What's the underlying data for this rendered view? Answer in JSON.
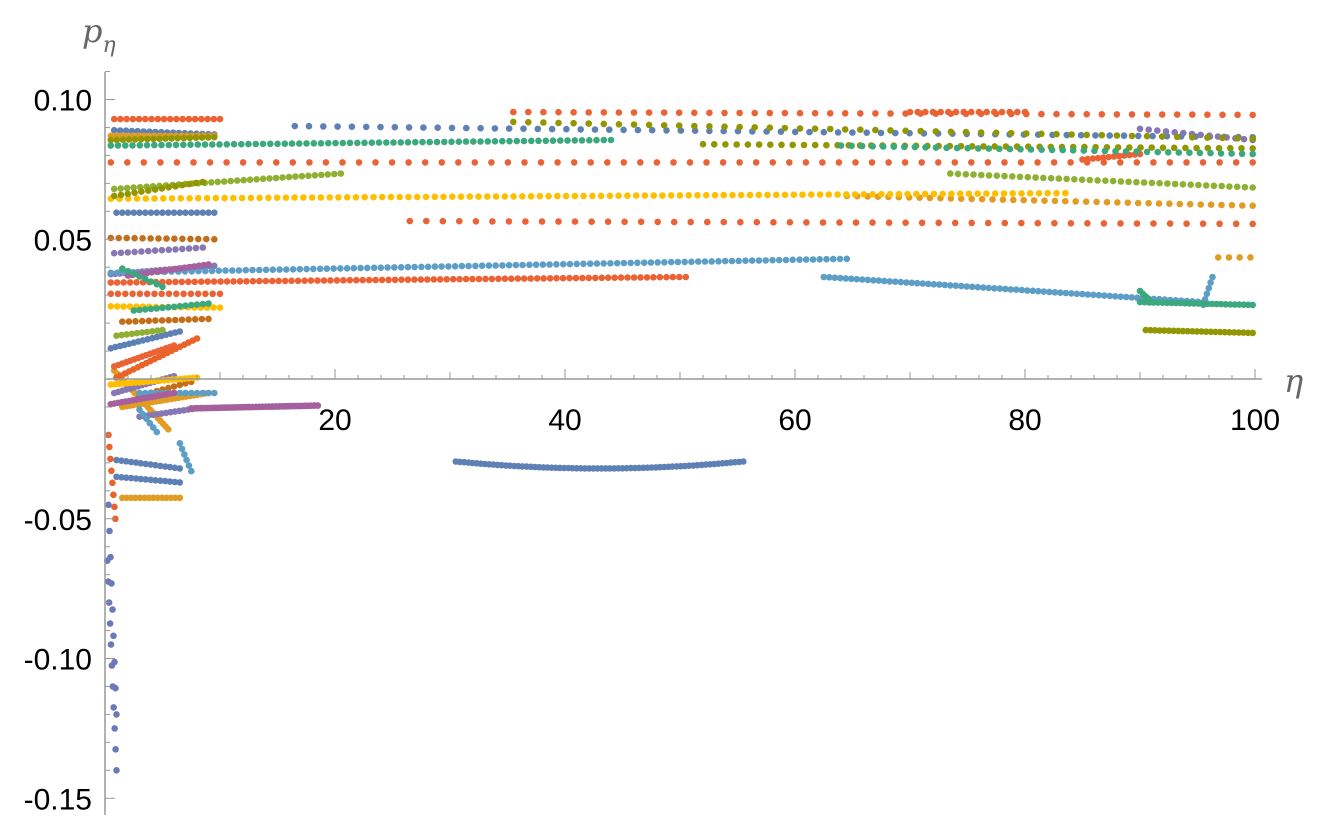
{
  "chart_data": {
    "type": "scatter",
    "title": "",
    "xlabel": "η",
    "ylabel": "p",
    "ylabel_subscript": "η",
    "xlim": [
      0,
      100
    ],
    "ylim": [
      -0.15,
      0.11
    ],
    "xticks": [
      20,
      40,
      60,
      80,
      100
    ],
    "xtick_labels": [
      "20",
      "40",
      "60",
      "80",
      "100"
    ],
    "yticks": [
      0.1,
      0.05,
      -0.05,
      -0.1,
      -0.15
    ],
    "ytick_labels": [
      "0.10",
      "0.05",
      "-0.05",
      "-0.10",
      "-0.15"
    ],
    "grid": false,
    "legend": "none",
    "series": [
      {
        "color": "#5e81b5",
        "segments": [
          {
            "x": [
              0.8,
              9.5
            ],
            "y": [
              0.089,
              0.0875
            ],
            "n": 18
          },
          {
            "x": [
              16.5,
              99.8
            ],
            "y": [
              0.0905,
              0.0865
            ],
            "n": 68
          },
          {
            "x": [
              30.5,
              55.5
            ],
            "y": [
              -0.0295,
              -0.0295
            ],
            "curve": -0.0025,
            "n": 70
          },
          {
            "x": [
              1.0,
              9.5
            ],
            "y": [
              0.0595,
              0.0595
            ],
            "n": 18
          },
          {
            "x": [
              0.5,
              6.5
            ],
            "y": [
              0.011,
              0.017
            ],
            "n": 16
          },
          {
            "x": [
              1.0,
              6.5
            ],
            "y": [
              -0.029,
              -0.032
            ],
            "n": 14
          },
          {
            "x": [
              1.0,
              6.5
            ],
            "y": [
              -0.035,
              -0.037
            ],
            "n": 14
          }
        ]
      },
      {
        "color": "#e19c24",
        "segments": [
          {
            "x": [
              0.5,
              9.5
            ],
            "y": [
              0.087,
              0.087
            ],
            "n": 20
          },
          {
            "x": [
              64.5,
              99.8
            ],
            "y": [
              0.0655,
              0.062
            ],
            "n": 40
          },
          {
            "x": [
              96.8,
              99.6
            ],
            "y": [
              0.0435,
              0.0435
            ],
            "n": 4
          },
          {
            "x": [
              1.5,
              6.5
            ],
            "y": [
              -0.0425,
              -0.0425
            ],
            "n": 14
          },
          {
            "x": [
              1.5,
              9.0
            ],
            "y": [
              -0.01,
              -0.005
            ],
            "n": 24
          },
          {
            "x": [
              0.8,
              5.5
            ],
            "y": [
              0.003,
              -0.018
            ],
            "n": 22
          }
        ]
      },
      {
        "color": "#8fb032",
        "segments": [
          {
            "x": [
              0.8,
              20.5
            ],
            "y": [
              0.068,
              0.0735
            ],
            "n": 36
          },
          {
            "x": [
              73.5,
              99.8
            ],
            "y": [
              0.0735,
              0.0685
            ],
            "n": 40
          },
          {
            "x": [
              1.0,
              5.0
            ],
            "y": [
              0.0155,
              0.0175
            ],
            "n": 10
          }
        ]
      },
      {
        "color": "#eb6235",
        "segments": [
          {
            "x": [
              0.8,
              10.0
            ],
            "y": [
              0.093,
              0.093
            ],
            "n": 18
          },
          {
            "x": [
              35.5,
              99.8
            ],
            "y": [
              0.0955,
              0.0945
            ],
            "n": 50
          },
          {
            "x": [
              70.0,
              80.0
            ],
            "y": [
              0.0955,
              0.0955
            ],
            "n": 16
          },
          {
            "x": [
              0.5,
              99.8
            ],
            "y": [
              0.0775,
              0.0775
            ],
            "n": 70
          },
          {
            "x": [
              26.5,
              99.8
            ],
            "y": [
              0.0565,
              0.0555
            ],
            "n": 52
          },
          {
            "x": [
              0.5,
              50.5
            ],
            "y": [
              0.0345,
              0.0365
            ],
            "n": 90
          },
          {
            "x": [
              85.0,
              90.0
            ],
            "y": [
              0.0785,
              0.0805
            ],
            "n": 12
          },
          {
            "x": [
              0.5,
              10.0
            ],
            "y": [
              0.0305,
              0.0305
            ],
            "n": 16
          },
          {
            "x": [
              0.8,
              6.0
            ],
            "y": [
              0.0045,
              0.012
            ],
            "n": 16
          }
        ]
      },
      {
        "color": "#8778b3",
        "segments": [
          {
            "x": [
              0.5,
              9.5
            ],
            "y": [
              0.0375,
              0.0405
            ],
            "n": 24
          },
          {
            "x": [
              8.0,
              18.5
            ],
            "y": [
              -0.0105,
              -0.0095
            ],
            "n": 36
          },
          {
            "x": [
              3.0,
              8.0
            ],
            "y": [
              -0.0135,
              -0.0105
            ],
            "n": 14
          },
          {
            "x": [
              90.0,
              99.8
            ],
            "y": [
              0.0895,
              0.0855
            ],
            "n": 14
          },
          {
            "x": [
              0.8,
              8.5
            ],
            "y": [
              0.045,
              0.047
            ],
            "n": 14
          },
          {
            "x": [
              0.8,
              6.0
            ],
            "y": [
              -0.005,
              0.001
            ],
            "n": 16
          }
        ]
      },
      {
        "color": "#c56e1a",
        "segments": [
          {
            "x": [
              0.5,
              9.5
            ],
            "y": [
              0.0505,
              0.05
            ],
            "n": 14
          },
          {
            "x": [
              1.5,
              9.0
            ],
            "y": [
              0.0205,
              0.0215
            ],
            "n": 14
          },
          {
            "x": [
              3.0,
              7.5
            ],
            "y": [
              -0.006,
              -0.001
            ],
            "n": 10
          }
        ]
      },
      {
        "color": "#5d9ec7",
        "segments": [
          {
            "x": [
              0.5,
              64.5
            ],
            "y": [
              0.038,
              0.043
            ],
            "n": 110
          },
          {
            "x": [
              62.5,
              95.5
            ],
            "y": [
              0.0365,
              0.0275
            ],
            "n": 70
          },
          {
            "x": [
              95.5,
              96.3
            ],
            "y": [
              0.0265,
              0.0365
            ],
            "n": 6
          },
          {
            "x": [
              3.0,
              9.5
            ],
            "y": [
              -0.005,
              -0.005
            ],
            "n": 14
          },
          {
            "x": [
              3.0,
              4.5
            ],
            "y": [
              -0.011,
              -0.019
            ],
            "n": 6
          },
          {
            "x": [
              6.5,
              7.5
            ],
            "y": [
              -0.023,
              -0.033
            ],
            "n": 6
          }
        ]
      },
      {
        "color": "#ffbf00",
        "segments": [
          {
            "x": [
              0.5,
              83.5
            ],
            "y": [
              0.0645,
              0.0665
            ],
            "n": 110
          },
          {
            "x": [
              0.5,
              10.0
            ],
            "y": [
              0.026,
              0.0255
            ],
            "n": 18
          },
          {
            "x": [
              0.5,
              8.0
            ],
            "y": [
              -0.002,
              0.0005
            ],
            "n": 22
          }
        ]
      },
      {
        "color": "#a5609d",
        "segments": [
          {
            "x": [
              7.5,
              18.5
            ],
            "y": [
              -0.0105,
              -0.0095
            ],
            "n": 40
          },
          {
            "x": [
              2.0,
              9.0
            ],
            "y": [
              0.037,
              0.041
            ],
            "n": 18
          },
          {
            "x": [
              0.5,
              6.0
            ],
            "y": [
              -0.009,
              -0.005
            ],
            "n": 18
          }
        ]
      },
      {
        "color": "#929600",
        "segments": [
          {
            "x": [
              0.5,
              9.5
            ],
            "y": [
              0.0855,
              0.0865
            ],
            "n": 18
          },
          {
            "x": [
              35.5,
              99.8
            ],
            "y": [
              0.092,
              0.086
            ],
            "n": 50
          },
          {
            "x": [
              52.0,
              99.8
            ],
            "y": [
              0.084,
              0.0825
            ],
            "n": 50
          },
          {
            "x": [
              90.5,
              99.8
            ],
            "y": [
              0.0175,
              0.0165
            ],
            "n": 24
          },
          {
            "x": [
              0.8,
              8.5
            ],
            "y": [
              0.0655,
              0.0705
            ],
            "n": 14
          }
        ]
      },
      {
        "color": "#3ba87e",
        "segments": [
          {
            "x": [
              0.5,
              44.0
            ],
            "y": [
              0.0835,
              0.0855
            ],
            "n": 70
          },
          {
            "x": [
              64.0,
              99.8
            ],
            "y": [
              0.0835,
              0.0805
            ],
            "n": 40
          },
          {
            "x": [
              90.0,
              99.8
            ],
            "y": [
              0.0275,
              0.0265
            ],
            "n": 26
          },
          {
            "x": [
              90.0,
              91.0
            ],
            "y": [
              0.0315,
              0.0275
            ],
            "n": 5
          },
          {
            "x": [
              2.5,
              9.0
            ],
            "y": [
              0.0245,
              0.027
            ],
            "n": 14
          },
          {
            "x": [
              1.5,
              5.0
            ],
            "y": [
              0.0395,
              0.033
            ],
            "n": 8
          }
        ]
      },
      {
        "color": "#e9622a",
        "segments": [
          {
            "x": [
              1.0,
              8.0
            ],
            "y": [
              0.0005,
              0.0145
            ],
            "n": 20
          },
          {
            "x": [
              0.3,
              0.9
            ],
            "y": [
              -0.02,
              -0.05
            ],
            "n": 8
          }
        ]
      },
      {
        "color": "#6b78ba",
        "segments": [
          {
            "x": [
              0.2,
              1.0
            ],
            "y": [
              -0.065,
              -0.14
            ],
            "n": 11
          },
          {
            "x": [
              0.3,
              1.0
            ],
            "y": [
              -0.045,
              -0.12
            ],
            "n": 9
          }
        ]
      }
    ]
  }
}
